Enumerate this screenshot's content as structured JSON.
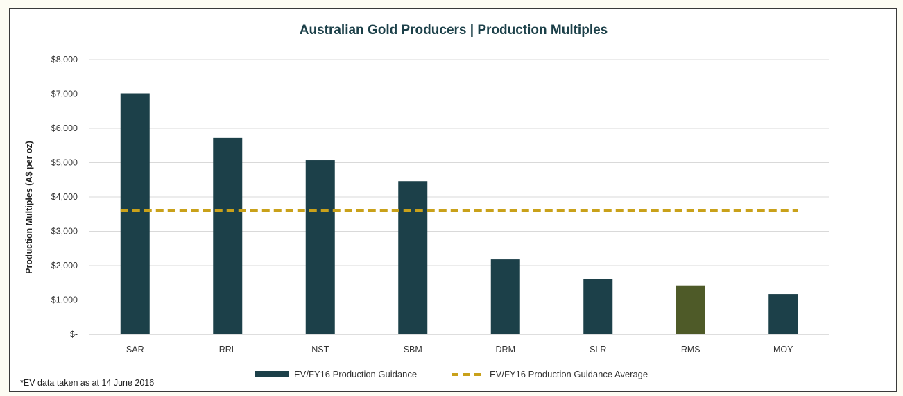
{
  "chart_data": {
    "type": "bar",
    "title": "Australian Gold Producers | Production Multiples",
    "ylabel": "Production Multiples (A$ per oz)",
    "xlabel": "",
    "ylim": [
      0,
      8000
    ],
    "y_ticks": [
      0,
      1000,
      2000,
      3000,
      4000,
      5000,
      6000,
      7000,
      8000
    ],
    "y_tick_labels": [
      "$-",
      "$1,000",
      "$2,000",
      "$3,000",
      "$4,000",
      "$5,000",
      "$6,000",
      "$7,000",
      "$8,000"
    ],
    "categories": [
      "SAR",
      "RRL",
      "NST",
      "SBM",
      "DRM",
      "SLR",
      "RMS",
      "MOY"
    ],
    "series": [
      {
        "name": "EV/FY16 Production Guidance",
        "type": "bar",
        "values": [
          7020,
          5720,
          5070,
          4460,
          2180,
          1610,
          1420,
          1170
        ],
        "color": "#1c4049",
        "highlight": {
          "category": "RMS",
          "color": "#4e5a28"
        }
      },
      {
        "name": "EV/FY16 Production Guidance Average",
        "type": "line",
        "style": "dashed",
        "value": 3600,
        "color": "#c9a11a"
      }
    ],
    "grid": true,
    "legend_position": "bottom-center",
    "footnote": "*EV data taken as at 14 June 2016",
    "title_color": "#1c4049"
  }
}
